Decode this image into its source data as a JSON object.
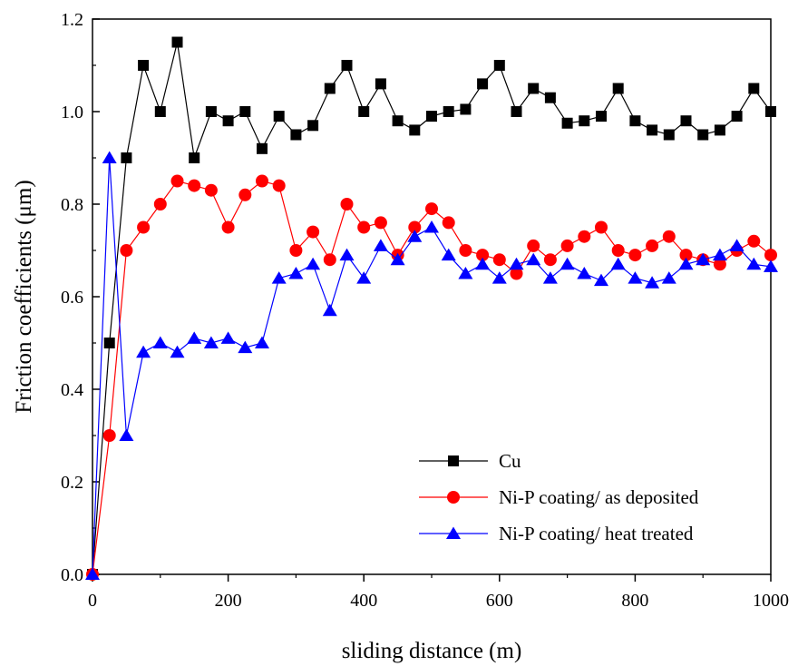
{
  "chart_data": {
    "type": "line",
    "title": "",
    "xlabel": "sliding distance (m)",
    "ylabel": "Friction coefficients (μm)",
    "xlim": [
      0,
      1000
    ],
    "ylim": [
      0,
      1.2
    ],
    "xticks": [
      0,
      200,
      400,
      600,
      800,
      1000
    ],
    "xtick_labels": [
      "0",
      "200",
      "400",
      "600",
      "800",
      "1000"
    ],
    "yticks": [
      0,
      0.2,
      0.4,
      0.6,
      0.8,
      1.0,
      1.2
    ],
    "ytick_labels": [
      "0.0",
      "0.2",
      "0.4",
      "0.6",
      "0.8",
      "1.0",
      "1.2"
    ],
    "grid": false,
    "legend_position": "bottom-right",
    "x": [
      0,
      25,
      50,
      75,
      100,
      125,
      150,
      175,
      200,
      225,
      250,
      275,
      300,
      325,
      350,
      375,
      400,
      425,
      450,
      475,
      500,
      525,
      550,
      575,
      600,
      625,
      650,
      675,
      700,
      725,
      750,
      775,
      800,
      825,
      850,
      875,
      900,
      925,
      950,
      975,
      1000
    ],
    "series": [
      {
        "name": "Cu",
        "color": "#000000",
        "marker": "square",
        "values": [
          0,
          0.5,
          0.9,
          1.1,
          1.0,
          1.15,
          0.9,
          1.0,
          0.98,
          1.0,
          0.92,
          0.99,
          0.95,
          0.97,
          1.05,
          1.1,
          1.0,
          1.06,
          0.98,
          0.96,
          0.99,
          1.0,
          1.005,
          1.06,
          1.1,
          1.0,
          1.05,
          1.03,
          0.975,
          0.98,
          0.99,
          1.05,
          0.98,
          0.96,
          0.95,
          0.98,
          0.95,
          0.96,
          0.99,
          1.05,
          1.0
        ]
      },
      {
        "name": "Ni-P coating/ as deposited",
        "color": "#ff0000",
        "marker": "circle",
        "values": [
          0,
          0.3,
          0.7,
          0.75,
          0.8,
          0.85,
          0.84,
          0.83,
          0.75,
          0.82,
          0.85,
          0.84,
          0.7,
          0.74,
          0.68,
          0.8,
          0.75,
          0.76,
          0.69,
          0.75,
          0.79,
          0.76,
          0.7,
          0.69,
          0.68,
          0.65,
          0.71,
          0.68,
          0.71,
          0.73,
          0.75,
          0.7,
          0.69,
          0.71,
          0.73,
          0.69,
          0.68,
          0.67,
          0.7,
          0.72,
          0.69
        ]
      },
      {
        "name": "Ni-P coating/ heat treated",
        "color": "#0000ff",
        "marker": "triangle",
        "values": [
          0,
          0.9,
          0.3,
          0.48,
          0.5,
          0.48,
          0.51,
          0.5,
          0.51,
          0.49,
          0.5,
          0.64,
          0.65,
          0.67,
          0.57,
          0.69,
          0.64,
          0.71,
          0.68,
          0.73,
          0.75,
          0.69,
          0.65,
          0.67,
          0.64,
          0.67,
          0.68,
          0.64,
          0.67,
          0.65,
          0.635,
          0.67,
          0.64,
          0.63,
          0.64,
          0.67,
          0.68,
          0.69,
          0.71,
          0.67,
          0.665
        ]
      }
    ]
  }
}
